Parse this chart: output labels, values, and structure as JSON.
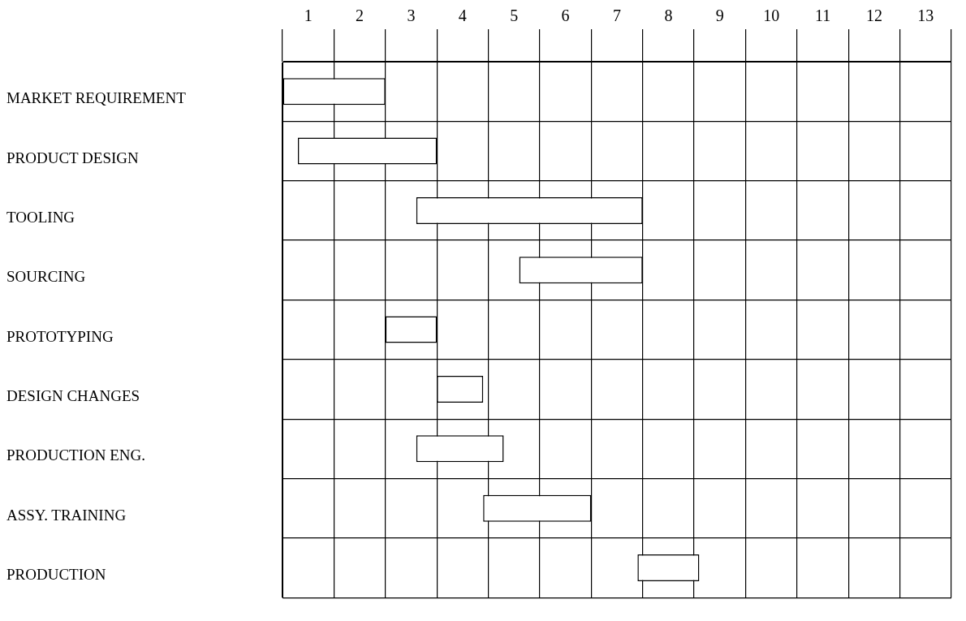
{
  "chart_data": {
    "type": "bar",
    "orientation": "horizontal",
    "categories": [
      "MARKET REQUIREMENT",
      "PRODUCT DESIGN",
      "TOOLING",
      "SOURCING",
      "PROTOTYPING",
      "DESIGN CHANGES",
      "PRODUCTION ENG.",
      "ASSY. TRAINING",
      "PRODUCTION"
    ],
    "base": [
      0,
      0.3,
      2.6,
      4.6,
      2,
      3,
      2.6,
      3.9,
      6.9
    ],
    "values": [
      2,
      2.7,
      4.4,
      2.4,
      1,
      0.9,
      1.7,
      2.1,
      1.2
    ],
    "color": "#ffffff",
    "xlim": [
      0,
      13
    ],
    "xticks": [
      {
        "value": 0,
        "label": null
      },
      {
        "value": 0.5,
        "label": "1"
      },
      {
        "value": 1,
        "label": null
      },
      {
        "value": 1.5,
        "label": "2"
      },
      {
        "value": 2,
        "label": null
      },
      {
        "value": 2.5,
        "label": "3"
      },
      {
        "value": 3,
        "label": null
      },
      {
        "value": 3.5,
        "label": "4"
      },
      {
        "value": 4,
        "label": null
      },
      {
        "value": 4.5,
        "label": "5"
      },
      {
        "value": 5,
        "label": null
      },
      {
        "value": 5.5,
        "label": "6"
      },
      {
        "value": 6,
        "label": null
      },
      {
        "value": 6.5,
        "label": "7"
      },
      {
        "value": 7,
        "label": null
      },
      {
        "value": 7.5,
        "label": "8"
      },
      {
        "value": 8,
        "label": null
      },
      {
        "value": 8.5,
        "label": "9"
      },
      {
        "value": 9,
        "label": null
      },
      {
        "value": 9.5,
        "label": "10"
      },
      {
        "value": 10,
        "label": null
      },
      {
        "value": 10.5,
        "label": "11"
      },
      {
        "value": 11,
        "label": null
      },
      {
        "value": 11.5,
        "label": "12"
      },
      {
        "value": 12,
        "label": null
      },
      {
        "value": 12.5,
        "label": "13"
      },
      {
        "value": 13,
        "label": null
      }
    ],
    "grid": true
  }
}
